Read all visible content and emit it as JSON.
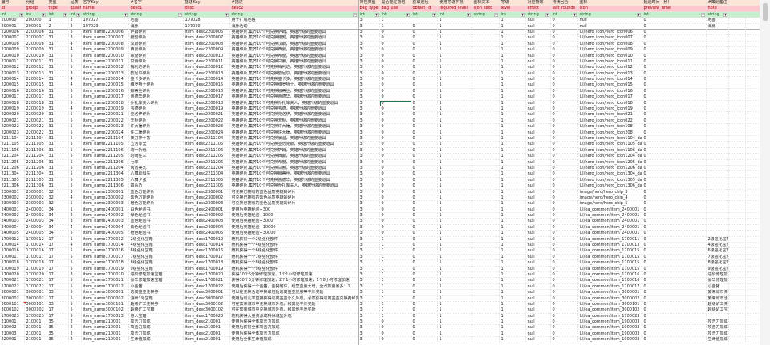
{
  "header_cn": [
    "编号",
    "分组",
    "类型",
    "品质",
    "名字Key",
    "#名字",
    "描述Key",
    "#描述",
    "背包类型",
    "是否能在背包",
    "获取途径",
    "使用等级下限",
    "图标文本",
    "等级",
    "对应特效",
    "持续回合",
    "图标",
    "延迟时间（秒）",
    "#策划备注"
  ],
  "header_en": [
    "id",
    "group",
    "type",
    "quality",
    "name",
    "desc1",
    "desc",
    "desc2",
    "bag_type",
    "bag_use",
    "obtain_id",
    "required_level",
    "icon_text",
    "level",
    "effect",
    "last_rounds",
    "icon",
    "preview_time",
    "note"
  ],
  "header_type": [
    "int",
    "int",
    "int",
    "int",
    "string",
    "string",
    "string",
    "string",
    "int",
    "int",
    "int",
    "int",
    "string",
    "int",
    "string",
    "int",
    "string",
    "int",
    "string"
  ],
  "filter_icon": "▾",
  "colors": {
    "header1": "#fce4d6",
    "header2": "#ffc7ce",
    "header3": "#c6efce",
    "selection": "#217346"
  },
  "selected_cell": {
    "row_id": "2200018",
    "column": "bag_use"
  },
  "comment_cell": {
    "row_id": "3000101",
    "column": "id"
  },
  "rows": [
    [
      "200000",
      "200000",
      "1",
      "2",
      "107027",
      "地图",
      "107028",
      "用于扩展地格",
      "3",
      "1",
      "",
      "1",
      "",
      "1",
      "null",
      "0",
      "null",
      "0",
      "地图"
    ],
    [
      "200001",
      "200001",
      "2",
      "2",
      "107029",
      "海豚",
      "107030",
      "海豚活动",
      "3",
      "1",
      "0",
      "1",
      "",
      "1",
      "null",
      "0",
      "null",
      "0",
      "海豚"
    ],
    [
      "2200006",
      "2200006",
      "31",
      "5",
      "item_name2200006",
      "萨姆碎片",
      "item_desc2200006",
      "英雄碎片,集齐10个可兑换萨姆，英雄升级的重要道具",
      "3",
      "0",
      "0",
      "1",
      "",
      "1",
      "null",
      "0",
      "UI/hero_icon/hero_icon006",
      "0",
      ""
    ],
    [
      "2200007",
      "2200007",
      "31",
      "3",
      "item_name2200007",
      "鲍勃碎片",
      "item_desc2200007",
      "英雄碎片,集齐10个可兑换鲍勃，英雄升级的重要道具",
      "3",
      "0",
      "0",
      "1",
      "",
      "1",
      "null",
      "0",
      "UI/hero_icon/hero_icon007",
      "0",
      ""
    ],
    [
      "2200008",
      "2200008",
      "31",
      "4",
      "item_name2200008",
      "汉斯碎片",
      "item_desc2200008",
      "英雄碎片,集齐10个可兑换汉斯，英雄升级的重要道具",
      "3",
      "0",
      "0",
      "1",
      "",
      "1",
      "null",
      "0",
      "UI/hero_icon/hero_icon008",
      "0",
      ""
    ],
    [
      "2200009",
      "2200009",
      "31",
      "4",
      "item_name2200009",
      "西蒙碎片",
      "item_desc2200009",
      "英雄碎片,集齐10个可兑换西蒙，英雄升级的重要道具",
      "3",
      "0",
      "0",
      "1",
      "",
      "1",
      "null",
      "0",
      "UI/hero_icon/hero_icon009",
      "0",
      ""
    ],
    [
      "2200010",
      "2200010",
      "31",
      "5",
      "item_name2200010",
      "希度碎片",
      "item_desc2200010",
      "英雄碎片,集齐10个可兑换希度，英雄升级的重要道具",
      "3",
      "0",
      "0",
      "1",
      "",
      "1",
      "null",
      "0",
      "UI/hero_icon/hero_icon010",
      "0",
      ""
    ],
    [
      "2200011",
      "2200011",
      "31",
      "5",
      "item_name2200011",
      "甘索碎片",
      "item_desc2200011",
      "英雄碎片,集齐10个可兑换甘索，英雄升级的重要道具",
      "3",
      "0",
      "0",
      "1",
      "",
      "1",
      "null",
      "0",
      "UI/hero_icon/hero_icon011",
      "0",
      ""
    ],
    [
      "2200012",
      "2200012",
      "31",
      "5",
      "item_name2200012",
      "梅利达碎片",
      "item_desc2200012",
      "英雄碎片,集齐10个可兑换梅利达，英雄升级的重要道具",
      "3",
      "0",
      "0",
      "1",
      "",
      "1",
      "null",
      "0",
      "UI/hero_icon/hero_icon012",
      "0",
      ""
    ],
    [
      "2200013",
      "2200013",
      "31",
      "3",
      "item_name2200013",
      "欧尼尔碎片",
      "item_desc2200013",
      "英雄碎片,集齐10个可兑换欧尼尔，英雄升级的重要道具",
      "3",
      "0",
      "0",
      "1",
      "",
      "1",
      "null",
      "0",
      "UI/hero_icon/hero_icon013",
      "0",
      ""
    ],
    [
      "2200014",
      "2200014",
      "31",
      "4",
      "item_name2200014",
      "墨卡多碎片",
      "item_desc2200014",
      "英雄碎片,集齐10个可兑换墨卡多，英雄升级的重要道具",
      "3",
      "0",
      "0",
      "1",
      "",
      "1",
      "null",
      "0",
      "UI/hero_icon/hero_icon014",
      "0",
      ""
    ],
    [
      "2200015",
      "2200015",
      "31",
      "4",
      "item_name2200015",
      "维罗嘻士碎片",
      "item_desc2200015",
      "英雄碎片,集齐10个可兑换维罗嘻士，英雄升级的重要道具",
      "3",
      "0",
      "0",
      "1",
      "",
      "1",
      "null",
      "0",
      "UI/hero_icon/hero_icon015",
      "0",
      ""
    ],
    [
      "2200016",
      "2200016",
      "31",
      "5",
      "item_name2200016",
      "娜蒂丝碎片",
      "item_desc2200016",
      "英雄碎片,集齐10个可兑换娜蒂丝，英雄升级的重要道具",
      "3",
      "0",
      "0",
      "1",
      "",
      "1",
      "null",
      "0",
      "UI/hero_icon/hero_icon016",
      "0",
      ""
    ],
    [
      "2200017",
      "2200017",
      "31",
      "5",
      "item_name2200017",
      "曹德华碎片",
      "item_desc2200017",
      "英雄碎片,集齐10个可兑换曹德华，英雄升级的重要道具",
      "3",
      "0",
      "0",
      "1",
      "",
      "1",
      "null",
      "0",
      "UI/hero_icon/hero_icon017",
      "0",
      ""
    ],
    [
      "2200018",
      "2200018",
      "31",
      "5",
      "item_name2200018",
      "乔扎库夫人碎片",
      "item_desc2200018",
      "英雄碎片,集齐10个可兑换乔扎库夫人，英雄升级的重要道具",
      "3",
      "0",
      "0",
      "1",
      "",
      "1",
      "null",
      "0",
      "UI/hero_icon/hero_icon018",
      "0",
      ""
    ],
    [
      "2200019",
      "2200019",
      "31",
      "4",
      "item_name2200019",
      "韦德碎片",
      "item_desc2200019",
      "英雄碎片,集齐10个可兑换韦德，英雄升级的重要道具",
      "3",
      "0",
      "0",
      "1",
      "",
      "1",
      "null",
      "0",
      "UI/hero_icon/hero_icon019",
      "0",
      ""
    ],
    [
      "2200020",
      "2200020",
      "31",
      "5",
      "item_name2200021",
      "克洛伊碎片",
      "item_desc2200021",
      "英雄碎片,集齐10个可兑换克洛伊，英雄升级的重要道具",
      "3",
      "0",
      "0",
      "1",
      "",
      "1",
      "null",
      "0",
      "UI/hero_icon/hero_icon021",
      "0",
      ""
    ],
    [
      "2200021",
      "2200021",
      "31",
      "5",
      "item_name2200022",
      "天枢碎片",
      "item_desc2200022",
      "英雄碎片,集齐10个可兑换天枢，英雄升级的重要道具",
      "3",
      "0",
      "0",
      "1",
      "",
      "1",
      "null",
      "0",
      "UI/hero_icon/hero_icon022",
      "0",
      ""
    ],
    [
      "2200022",
      "2200022",
      "31",
      "5",
      "item_name2200023",
      "许大锤碎片",
      "item_desc2200023",
      "英雄碎片,集齐10个可兑换许大锤，英雄升级的重要道具",
      "3",
      "0",
      "0",
      "1",
      "",
      "1",
      "null",
      "0",
      "UI/hero_icon/hero_icon108",
      "0",
      ""
    ],
    [
      "2200023",
      "2200022",
      "31",
      "5",
      "item_name2200024",
      "许二锤碎片",
      "item_desc2200024",
      "英雄碎片,集齐10个可兑换许大锤，英雄升级的重要道具",
      "3",
      "0",
      "0",
      "1",
      "",
      "1",
      "null",
      "0",
      "UI/hero_icon/hero_icon208",
      "0",
      ""
    ],
    [
      "2211104",
      "2211104",
      "31",
      "5",
      "item_name2211104",
      "夜刀神十香",
      "item_desc2211104",
      "英雄碎片,集齐10个可兑换暴温，英雄升级的重要道具",
      "3",
      "0",
      "0",
      "1",
      "",
      "1",
      "null",
      "0",
      "UI/hero_icon/hero_icon1104_date1",
      "0",
      ""
    ],
    [
      "2211105",
      "2211105",
      "31",
      "5",
      "item_name2211105",
      "五河琴里",
      "item_desc2211105",
      "英雄碎片,集齐10个可兑换亚历克斯，英雄升级的重要道具",
      "3",
      "0",
      "0",
      "1",
      "",
      "1",
      "null",
      "0",
      "UI/hero_icon/hero_icon1105_date1",
      "0",
      ""
    ],
    [
      "2211106",
      "2211106",
      "31",
      "5",
      "item_name2211106",
      "鸢一折纸",
      "item_desc2211106",
      "英雄碎片,集齐10个可兑换萨姆，英雄升级的重要道具",
      "3",
      "0",
      "0",
      "1",
      "",
      "1",
      "null",
      "0",
      "UI/hero_icon/hero_icon1106_date1",
      "0",
      ""
    ],
    [
      "2211204",
      "2211204",
      "31",
      "5",
      "item_name2211205",
      "时崎狂三",
      "item_desc2211205",
      "英雄碎片,集齐10个可兑换西蒙，英雄升级的重要道具",
      "3",
      "0",
      "0",
      "1",
      "",
      "1",
      "null",
      "0",
      "UI/hero_icon/hero_icon1204_date1",
      "0",
      ""
    ],
    [
      "2211205",
      "2211205",
      "31",
      "5",
      "item_name2211206",
      "七罪",
      "item_desc2211206",
      "英雄碎片,集齐10个可兑换希度，英雄升级的重要道具",
      "3",
      "0",
      "0",
      "1",
      "",
      "1",
      "null",
      "0",
      "UI/hero_icon/hero_icon1205_date1",
      "0",
      ""
    ],
    [
      "2211206",
      "2211206",
      "31",
      "5",
      "item_name2211204",
      "诱宵美九",
      "item_desc2211204",
      "英雄碎片,集齐10个可兑换甘索，英雄升级的重要道具",
      "3",
      "0",
      "0",
      "1",
      "",
      "1",
      "null",
      "0",
      "UI/hero_icon/hero_icon1206_date1",
      "0",
      ""
    ],
    [
      "2211304",
      "2211304",
      "31",
      "5",
      "item_name2211304",
      "八舞耶俱矢",
      "item_desc2211304",
      "英雄碎片,集齐10个可兑换娜蒂丝，英雄升级的重要道具",
      "3",
      "0",
      "0",
      "1",
      "",
      "1",
      "null",
      "0",
      "UI/hero_icon/hero_icon1304_date1",
      "0",
      ""
    ],
    [
      "2211305",
      "2211305",
      "31",
      "5",
      "item_name2211305",
      "八舞夕弦",
      "item_desc2211305",
      "英雄碎片,集齐10个可兑换曹德华，英雄升级的重要道具",
      "3",
      "0",
      "0",
      "1",
      "",
      "1",
      "null",
      "0",
      "UI/hero_icon/hero_icon1305_date1",
      "0",
      ""
    ],
    [
      "2211306",
      "2211306",
      "31",
      "5",
      "item_name2211306",
      "四糸乃",
      "item_desc2211306",
      "英雄碎片,集齐10个可兑换乔扎库夫人，英雄升级的重要道具",
      "3",
      "0",
      "0",
      "1",
      "",
      "1",
      "null",
      "0",
      "UI/hero_icon/hero_icon1306_date1",
      "0",
      ""
    ],
    [
      "2300001",
      "2300001",
      "32",
      "3",
      "item_name2300001",
      "蓝色万能碎片",
      "item_desc2300001",
      "可兑换已拥有的蓝色品质英雄的碎片",
      "3",
      "0",
      "0",
      "1",
      "",
      "1",
      "null",
      "0",
      "image/hero/hero_chip_3",
      "0",
      ""
    ],
    [
      "2300002",
      "2300002",
      "32",
      "4",
      "item_name2300002",
      "紫色万能碎片",
      "item_desc2300002",
      "可兑换已拥有的紫色品质英雄的碎片",
      "3",
      "0",
      "0",
      "1",
      "",
      "1",
      "null",
      "0",
      "image/hero/hero_chip_4",
      "0",
      ""
    ],
    [
      "2300003",
      "2300003",
      "32",
      "5",
      "item_name2300003",
      "橙色万能碎片",
      "item_desc2300003",
      "可兑换已拥有的金色品质英雄的碎片",
      "3",
      "0",
      "0",
      "1",
      "",
      "1",
      "null",
      "0",
      "image/hero/hero_chip_5",
      "0",
      ""
    ],
    [
      "2400001",
      "2400001",
      "34",
      "1",
      "item_name2400001",
      "白色经验书",
      "item_desc2400001",
      "使用后英雄经验+300",
      "3",
      "0",
      "0",
      "1",
      "",
      "1",
      "null",
      "0",
      "UI/ea_common/item_2400001",
      "0",
      ""
    ],
    [
      "2400002",
      "2400002",
      "34",
      "2",
      "item_name2400002",
      "绿色经验书",
      "item_desc2400002",
      "使用后英雄经验+1000",
      "3",
      "0",
      "0",
      "1",
      "",
      "1",
      "null",
      "0",
      "UI/ea_common/item_2400001",
      "0",
      ""
    ],
    [
      "2400003",
      "2400003",
      "34",
      "3",
      "item_name2400003",
      "蓝色经验书",
      "item_desc2400003",
      "使用后英雄经验+3000",
      "3",
      "0",
      "0",
      "1",
      "",
      "1",
      "null",
      "0",
      "UI/ea_common/item_2400001",
      "0",
      ""
    ],
    [
      "2400004",
      "2400004",
      "34",
      "4",
      "item_name2400004",
      "紫色经验书",
      "item_desc2400004",
      "使用后英雄经验+10000",
      "3",
      "0",
      "0",
      "1",
      "",
      "1",
      "null",
      "0",
      "UI/ea_common/item_2400001",
      "0",
      ""
    ],
    [
      "2400005",
      "2400005",
      "34",
      "5",
      "item_name2400005",
      "橙色经验书",
      "item_desc2400005",
      "使用后英雄经验+30000",
      "3",
      "0",
      "0",
      "1",
      "",
      "1",
      "null",
      "0",
      "UI/ea_common/item_2400001",
      "0",
      ""
    ],
    [
      "1700012",
      "1700012",
      "17",
      "1",
      "item_name1700012",
      "2级强化宝箱",
      "item_desc1700012",
      "随机获得一个2级强化部件",
      "3",
      "1",
      "0",
      "1",
      "",
      "1",
      "null",
      "0",
      "UI/ea_common/item_1700011",
      "0",
      "2级强化宝箱"
    ],
    [
      "1700014",
      "1700014",
      "17",
      "4",
      "item_name1700014",
      "4级强化宝箱",
      "item_desc1700014",
      "随机获得一个4级强化部件",
      "3",
      "1",
      "0",
      "1",
      "",
      "1",
      "null",
      "0",
      "UI/ea_common/item_1700013",
      "0",
      "4级强化宝箱"
    ],
    [
      "1700016",
      "1700016",
      "17",
      "5",
      "item_name1700016",
      "6级强化宝箱",
      "item_desc1700016",
      "随机获得一个6级强化部件",
      "3",
      "1",
      "0",
      "1",
      "",
      "1",
      "null",
      "0",
      "UI/ea_common/item_1700015",
      "0",
      "6级强化宝箱"
    ],
    [
      "1700017",
      "1700017",
      "17",
      "5",
      "item_name1700017",
      "7级强化宝箱",
      "item_desc1700017",
      "随机获得一个7级强化部件",
      "3",
      "1",
      "0",
      "1",
      "",
      "1",
      "null",
      "0",
      "UI/ea_common/item_1700015",
      "0",
      "7级强化宝箱"
    ],
    [
      "1700018",
      "1700018",
      "17",
      "5",
      "item_name1700018",
      "8级强化宝箱",
      "item_desc1700018",
      "随机获得一个8级强化部件",
      "3",
      "1",
      "0",
      "1",
      "",
      "1",
      "null",
      "0",
      "UI/ea_common/item_1700015",
      "0",
      "8级强化宝箱"
    ],
    [
      "1700019",
      "1700019",
      "17",
      "5",
      "item_name1700019",
      "9级强化宝箱",
      "item_desc1700019",
      "随机获得一个9级强化部件",
      "3",
      "1",
      "0",
      "1",
      "",
      "1",
      "null",
      "0",
      "UI/ea_common/item_1700015",
      "0",
      "9级强化宝箱"
    ],
    [
      "1700020",
      "1700020",
      "17",
      "3",
      "item_name1700020",
      "进阶修理加速宝箱",
      "item_desc1700020",
      "获得10个5分钟修理加速，1个1小时修理加速",
      "3",
      "1",
      "0",
      "1",
      "",
      "1",
      "null",
      "0",
      "UI/ea_common/item_1700016",
      "0",
      "进阶修理加速宝箱"
    ],
    [
      "1700021",
      "1700021",
      "17",
      "5",
      "item_name1700021",
      "豪华修理加速宝箱",
      "item_desc1700021",
      "获得30个5分钟修理加速，2个1小时修理加速，1个8小时修理加速",
      "3",
      "1",
      "0",
      "1",
      "",
      "1",
      "null",
      "0",
      "UI/ea_common/item_1700016",
      "0",
      "豪华修理加速宝箱"
    ],
    [
      "1700022",
      "1700022",
      "17",
      "5",
      "item_name1700022",
      "小金猪",
      "item_desc1700022",
      "使用后获得一个金猪，金猪附体，经营血量大增，全改数量暴多：1",
      "3",
      "1",
      "0",
      "1",
      "",
      "1",
      "null",
      "0",
      "UI/ea_common/item_1700017",
      "0",
      "小金猪"
    ],
    [
      "3000001",
      "3000001",
      "33",
      "5",
      "item_name3000001",
      "逃离墨亚兑换券",
      "item_desc3000001",
      "可以在兑换活动中换取包括逃离墨亚皮肤等丰厚奖励",
      "3",
      "1",
      "0",
      "1",
      "",
      "1",
      "null",
      "0",
      "UI/ea_common/item_3000001",
      "0",
      "繁荣城市兑换券"
    ],
    [
      "3000002",
      "3000002",
      "17",
      "5",
      "item_name3000002",
      "游研1号宝箱",
      "item_desc3000002",
      "使用后有几率直接获得逃离墨亚永久外观，必然获得逃离墨亚兑换券和其他",
      "3",
      "1",
      "0",
      "1",
      "",
      "1",
      "null",
      "0",
      "UI/ea_common/item_3000002",
      "0",
      "繁荣城市活动宝箱"
    ],
    [
      "3000101",
      "3000101",
      "33",
      "5",
      "item_name3000101",
      "超级矿工兑换券",
      "item_desc3000102",
      "可在繁荣城市中兑换城市外观，和其他丰厚奖励",
      "3",
      "1",
      "0",
      "1",
      "",
      "1",
      "null",
      "0",
      "UI/ea_common/item_3000101",
      "0",
      "超级矿工兑换券"
    ],
    [
      "3000102",
      "3000102",
      "17",
      "5",
      "item_name3000102",
      "超级矿工宝箱",
      "item_desc3000102",
      "可在繁荣城市中兑换城市外观，和其他丰厚奖励",
      "3",
      "1",
      "0",
      "1",
      "",
      "1",
      "null",
      "0",
      "UI/ea_common/item_3000102",
      "0",
      "超级矿工宝箱"
    ],
    [
      "1700023",
      "1700023",
      "17",
      "5",
      "item_name1700023",
      "愚人宝箱",
      "item_desc1700023",
      "随机获得大量资源或特殊城堡外观",
      "3",
      "1",
      "0",
      "1",
      "",
      "1",
      "null",
      "0",
      "UI/ea_common/item_1700023",
      "0",
      ""
    ],
    [
      "210001",
      "210001",
      "35",
      "2",
      "item_name210001",
      "攻击力加成",
      "item_desc210001",
      "使用后获得全体攻击力加成",
      "3",
      "0",
      "0",
      "1",
      "",
      "1",
      "null",
      "0",
      "UI/ea_common/item_1900003",
      "0",
      "攻击力加成"
    ],
    [
      "210002",
      "210001",
      "35",
      "2",
      "item_name210001",
      "攻击力加成",
      "item_desc210001",
      "使用后获得全体攻击力加成",
      "3",
      "0",
      "0",
      "1",
      "",
      "1",
      "null",
      "0",
      "UI/ea_common/item_1900003",
      "0",
      "攻击力加成"
    ],
    [
      "210003",
      "210001",
      "35",
      "2",
      "item_name210001",
      "攻击力加成",
      "item_desc210001",
      "使用后获得全体攻击力加成",
      "3",
      "0",
      "0",
      "1",
      "",
      "1",
      "null",
      "0",
      "UI/ea_common/item_1900003",
      "0",
      "攻击力加成"
    ],
    [
      "220001",
      "210001",
      "35",
      "2",
      "item_name210001",
      "生命值加成",
      "item_desc210001",
      "使用后全体生命值加成",
      "3",
      "0",
      "0",
      "1",
      "",
      "1",
      "null",
      "0",
      "UI/ea_common/item_1900003",
      "0",
      "生命值加成"
    ]
  ]
}
